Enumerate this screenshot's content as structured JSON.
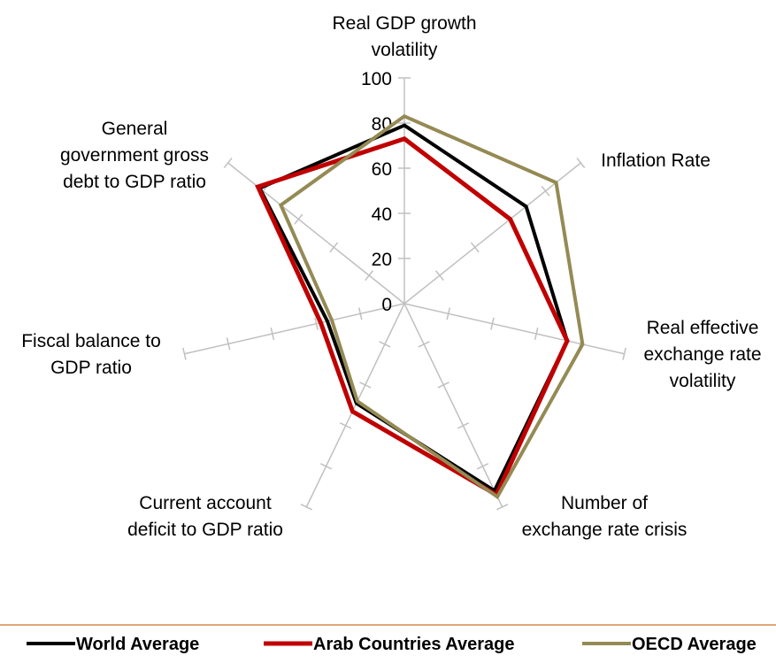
{
  "chart_data": {
    "type": "radar",
    "title": "",
    "axes": [
      "Real GDP growth volatility",
      "Inflation Rate",
      "Real effective exchange rate volatility",
      "Number of exchange rate crisis",
      "Current account deficit to GDP ratio",
      "Fiscal balance to GDP ratio",
      "General government gross debt to GDP ratio"
    ],
    "axis_label_lines": [
      [
        "Real GDP growth",
        "volatility"
      ],
      [
        "Inflation Rate"
      ],
      [
        "Real effective",
        "exchange rate",
        "volatility"
      ],
      [
        "Number of",
        "exchange rate crisis"
      ],
      [
        "Current account",
        "deficit to GDP ratio"
      ],
      [
        "Fiscal balance to",
        "GDP ratio"
      ],
      [
        "General",
        "government gross",
        "debt to GDP ratio"
      ]
    ],
    "ticks": [
      "0",
      "20",
      "40",
      "60",
      "80",
      "100"
    ],
    "range": [
      0,
      100
    ],
    "legend_position": "bottom",
    "series": [
      {
        "name": "World Average",
        "color": "#000000",
        "values": [
          79,
          69,
          74,
          92,
          49,
          35,
          82
        ]
      },
      {
        "name": "Arab Countries Average",
        "color": "#c00000",
        "values": [
          73,
          60,
          74,
          94,
          53,
          38,
          83
        ]
      },
      {
        "name": "OECD Average",
        "color": "#948a54",
        "values": [
          83,
          86,
          81,
          95,
          48,
          33,
          70
        ]
      }
    ]
  }
}
